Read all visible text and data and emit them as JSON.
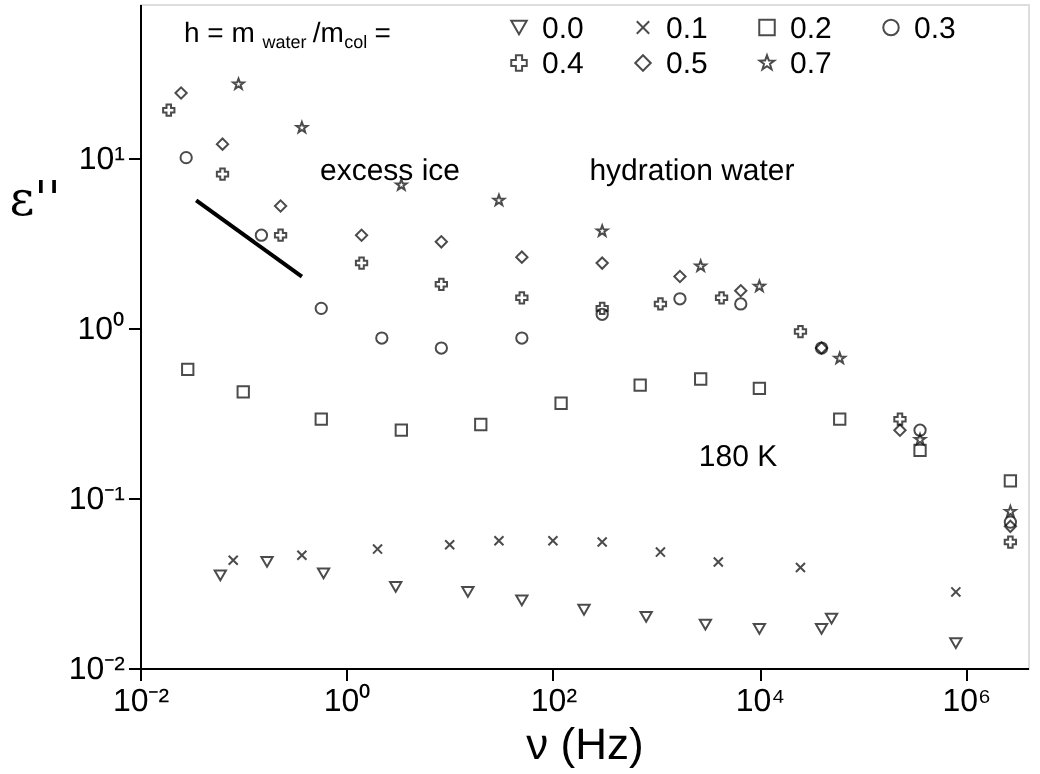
{
  "chart_data": {
    "type": "scatter",
    "xlabel": "ν (Hz)",
    "ylabel": "ε''",
    "legend_title": "h = m$_{water}$/m$_{col}$=",
    "legend": "top",
    "log": "xy",
    "grid": false,
    "xlim": [
      0.01,
      4000000
    ],
    "ylim": [
      0.01,
      80
    ],
    "xticks": [
      {
        "value": 0.01,
        "label": "10⁻²"
      },
      {
        "value": 1,
        "label": "10⁰"
      },
      {
        "value": 100,
        "label": "10²"
      },
      {
        "value": 10000,
        "label": "10⁴"
      },
      {
        "value": 1000000,
        "label": "10⁶"
      }
    ],
    "yticks": [
      {
        "value": 0.01,
        "label": "10⁻²"
      },
      {
        "value": 0.1,
        "label": "10⁻¹"
      },
      {
        "value": 1,
        "label": "10⁰"
      },
      {
        "value": 10,
        "label": "10¹"
      }
    ],
    "annotations": [
      "excess ice",
      "hydration water",
      "180 K"
    ],
    "series": [
      {
        "name": "0.0",
        "color": "#000000",
        "marker": "triangle-down",
        "x": [
          0.06,
          0.17,
          0.6,
          3,
          15,
          50,
          200,
          800,
          3000,
          10000,
          40000,
          50000,
          800000
        ],
        "values": [
          0.035,
          0.042,
          0.036,
          0.03,
          0.028,
          0.025,
          0.022,
          0.02,
          0.018,
          0.017,
          0.017,
          0.0195,
          0.014
        ]
      },
      {
        "name": "0.1",
        "color": "#000000",
        "marker": "x",
        "x": [
          0.08,
          0.37,
          2,
          10,
          30,
          100,
          300,
          1100,
          4000,
          25000,
          800000
        ],
        "values": [
          0.043,
          0.046,
          0.05,
          0.053,
          0.056,
          0.056,
          0.055,
          0.048,
          0.042,
          0.039,
          0.028
        ]
      },
      {
        "name": "0.2",
        "color": "#000000",
        "marker": "square",
        "x": [
          0.029,
          0.1,
          0.57,
          3.4,
          20,
          120,
          700,
          2700,
          10000,
          60000,
          360000,
          2700000
        ],
        "values": [
          0.57,
          0.42,
          0.29,
          0.25,
          0.27,
          0.36,
          0.46,
          0.5,
          0.44,
          0.29,
          0.19,
          0.126
        ]
      },
      {
        "name": "0.3",
        "color": "#000000",
        "marker": "circle",
        "x": [
          0.028,
          0.15,
          0.57,
          2.2,
          8.3,
          50,
          300,
          1700,
          6600,
          40000,
          360000,
          2700000
        ],
        "values": [
          10,
          3.5,
          1.3,
          0.87,
          0.76,
          0.87,
          1.2,
          1.48,
          1.38,
          0.76,
          0.25,
          0.072
        ]
      },
      {
        "name": "0.4",
        "color": "#000000",
        "marker": "cross",
        "x": [
          0.019,
          0.063,
          0.23,
          1.4,
          8.3,
          50,
          300,
          1100,
          4300,
          25000,
          230000,
          2700000
        ],
        "values": [
          19,
          8,
          3.5,
          2.4,
          1.8,
          1.5,
          1.3,
          1.38,
          1.5,
          0.95,
          0.29,
          0.055
        ]
      },
      {
        "name": "0.5",
        "color": "#000000",
        "marker": "diamond",
        "x": [
          0.025,
          0.063,
          0.23,
          1.4,
          8.3,
          50,
          300,
          1700,
          6600,
          40000,
          230000,
          2700000
        ],
        "values": [
          24,
          12,
          5.2,
          3.5,
          3.2,
          2.6,
          2.4,
          2,
          1.65,
          0.76,
          0.25,
          0.068
        ]
      },
      {
        "name": "0.7",
        "color": "#000000",
        "marker": "star",
        "x": [
          0.09,
          0.37,
          3.4,
          30,
          300,
          2700,
          10000,
          60000,
          360000,
          2700000
        ],
        "values": [
          27,
          15,
          6.9,
          5.6,
          3.7,
          2.3,
          1.75,
          0.66,
          0.22,
          0.083
        ]
      },
      {
        "type": "line",
        "color": "#000000",
        "line_style": "solid",
        "x": [
          0.035,
          0.37
        ],
        "values": [
          5.6,
          2
        ]
      }
    ]
  }
}
